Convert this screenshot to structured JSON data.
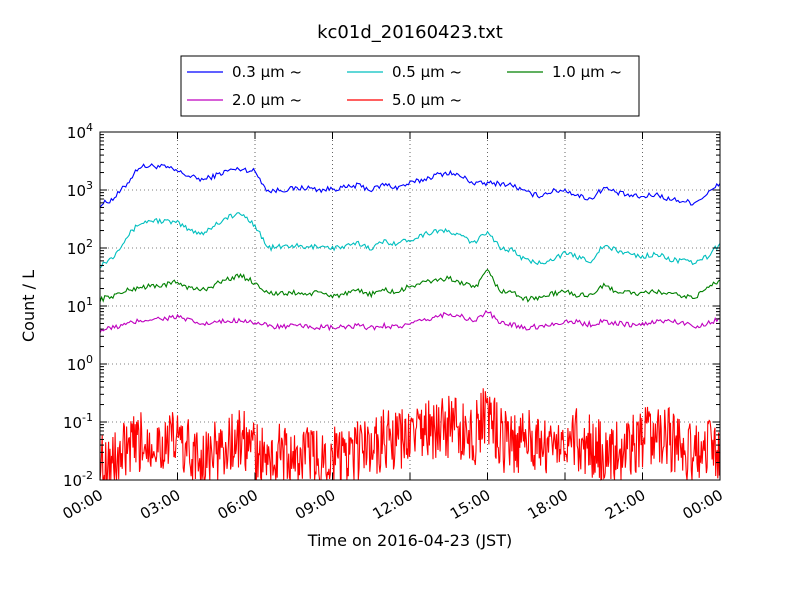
{
  "chart_data": {
    "type": "line",
    "title": "kc01d_20160423.txt",
    "xlabel": "Time on 2016-04-23 (JST)",
    "ylabel": "Count / L",
    "yscale": "log",
    "ylim": [
      0.01,
      10000
    ],
    "xlim": [
      "2016-04-23 00:00",
      "2016-04-24 00:00"
    ],
    "grid": true,
    "legend_position": "top, outside plot",
    "x_ticks": [
      "00:00",
      "03:00",
      "06:00",
      "09:00",
      "12:00",
      "15:00",
      "18:00",
      "21:00",
      "00:00"
    ],
    "y_ticks": [
      {
        "value": 0.01,
        "base": "10",
        "exp": "-2"
      },
      {
        "value": 0.1,
        "base": "10",
        "exp": "-1"
      },
      {
        "value": 1,
        "base": "10",
        "exp": "0"
      },
      {
        "value": 10,
        "base": "10",
        "exp": "1"
      },
      {
        "value": 100,
        "base": "10",
        "exp": "2"
      },
      {
        "value": 1000,
        "base": "10",
        "exp": "3"
      },
      {
        "value": 10000,
        "base": "10",
        "exp": "4"
      }
    ],
    "x": [
      "00:00",
      "00:30",
      "01:00",
      "01:30",
      "02:00",
      "02:30",
      "03:00",
      "03:30",
      "04:00",
      "04:30",
      "05:00",
      "05:30",
      "06:00",
      "06:30",
      "07:00",
      "07:30",
      "08:00",
      "08:30",
      "09:00",
      "09:30",
      "10:00",
      "10:30",
      "11:00",
      "11:30",
      "12:00",
      "12:30",
      "13:00",
      "13:30",
      "14:00",
      "14:30",
      "15:00",
      "15:30",
      "16:00",
      "16:30",
      "17:00",
      "17:30",
      "18:00",
      "18:30",
      "19:00",
      "19:30",
      "20:00",
      "20:30",
      "21:00",
      "21:30",
      "22:00",
      "22:30",
      "23:00",
      "23:30",
      "00:00"
    ],
    "series": [
      {
        "name": "0.3 μm ~",
        "color": "#0000ff",
        "values": [
          550,
          700,
          1200,
          2500,
          2600,
          2500,
          2100,
          1700,
          1500,
          1800,
          2200,
          2300,
          2100,
          950,
          1000,
          1050,
          1100,
          1000,
          1050,
          1100,
          1200,
          1000,
          1250,
          1100,
          1300,
          1500,
          1800,
          2000,
          1700,
          1300,
          1300,
          1300,
          1200,
          900,
          800,
          950,
          1000,
          800,
          700,
          1100,
          900,
          800,
          750,
          850,
          700,
          650,
          600,
          850,
          1300
        ]
      },
      {
        "name": "0.5 μm ~",
        "color": "#00bfbf",
        "values": [
          50,
          70,
          150,
          260,
          300,
          290,
          270,
          200,
          180,
          260,
          350,
          380,
          250,
          100,
          105,
          110,
          100,
          110,
          100,
          105,
          120,
          100,
          130,
          120,
          140,
          170,
          200,
          190,
          160,
          120,
          200,
          100,
          90,
          60,
          55,
          65,
          80,
          70,
          60,
          110,
          90,
          80,
          70,
          80,
          65,
          60,
          55,
          70,
          120
        ]
      },
      {
        "name": "1.0 μm ~",
        "color": "#008000",
        "values": [
          13,
          15,
          18,
          21,
          22,
          23,
          26,
          20,
          19,
          24,
          30,
          33,
          25,
          17,
          16,
          17,
          16,
          17,
          15,
          16,
          18,
          16,
          19,
          17,
          22,
          25,
          28,
          30,
          25,
          20,
          40,
          18,
          17,
          13,
          14,
          16,
          18,
          15,
          16,
          22,
          18,
          17,
          16,
          18,
          16,
          15,
          14,
          20,
          28
        ]
      },
      {
        "name": "2.0 μm ~",
        "color": "#bf00bf",
        "values": [
          3.8,
          4.2,
          4.8,
          5.5,
          6,
          6.1,
          6.5,
          5.5,
          4.8,
          5.2,
          5.5,
          5.8,
          5.2,
          4.5,
          4.4,
          4.5,
          4.4,
          4.3,
          4.2,
          4.3,
          4.5,
          4.2,
          4.6,
          4.4,
          4.8,
          5.5,
          6.5,
          7.5,
          6.5,
          5.5,
          8,
          5,
          4.8,
          4.2,
          4.5,
          4.8,
          5.5,
          5.2,
          4.8,
          5.5,
          5,
          4.8,
          4.7,
          5.5,
          5.5,
          5.2,
          4.5,
          5,
          6
        ]
      },
      {
        "name": "5.0 μm ~",
        "color": "#ff0000",
        "values": [
          0.02,
          0.02,
          0.03,
          0.04,
          0.05,
          0.04,
          0.05,
          0.03,
          0.02,
          0.03,
          0.04,
          0.05,
          0.03,
          0.02,
          0.03,
          0.02,
          0.03,
          0.02,
          0.03,
          0.02,
          0.03,
          0.04,
          0.05,
          0.04,
          0.06,
          0.07,
          0.07,
          0.08,
          0.07,
          0.06,
          0.15,
          0.05,
          0.04,
          0.05,
          0.04,
          0.05,
          0.06,
          0.05,
          0.04,
          0.03,
          0.03,
          0.04,
          0.05,
          0.06,
          0.05,
          0.04,
          0.03,
          0.04,
          0.03
        ]
      }
    ]
  }
}
